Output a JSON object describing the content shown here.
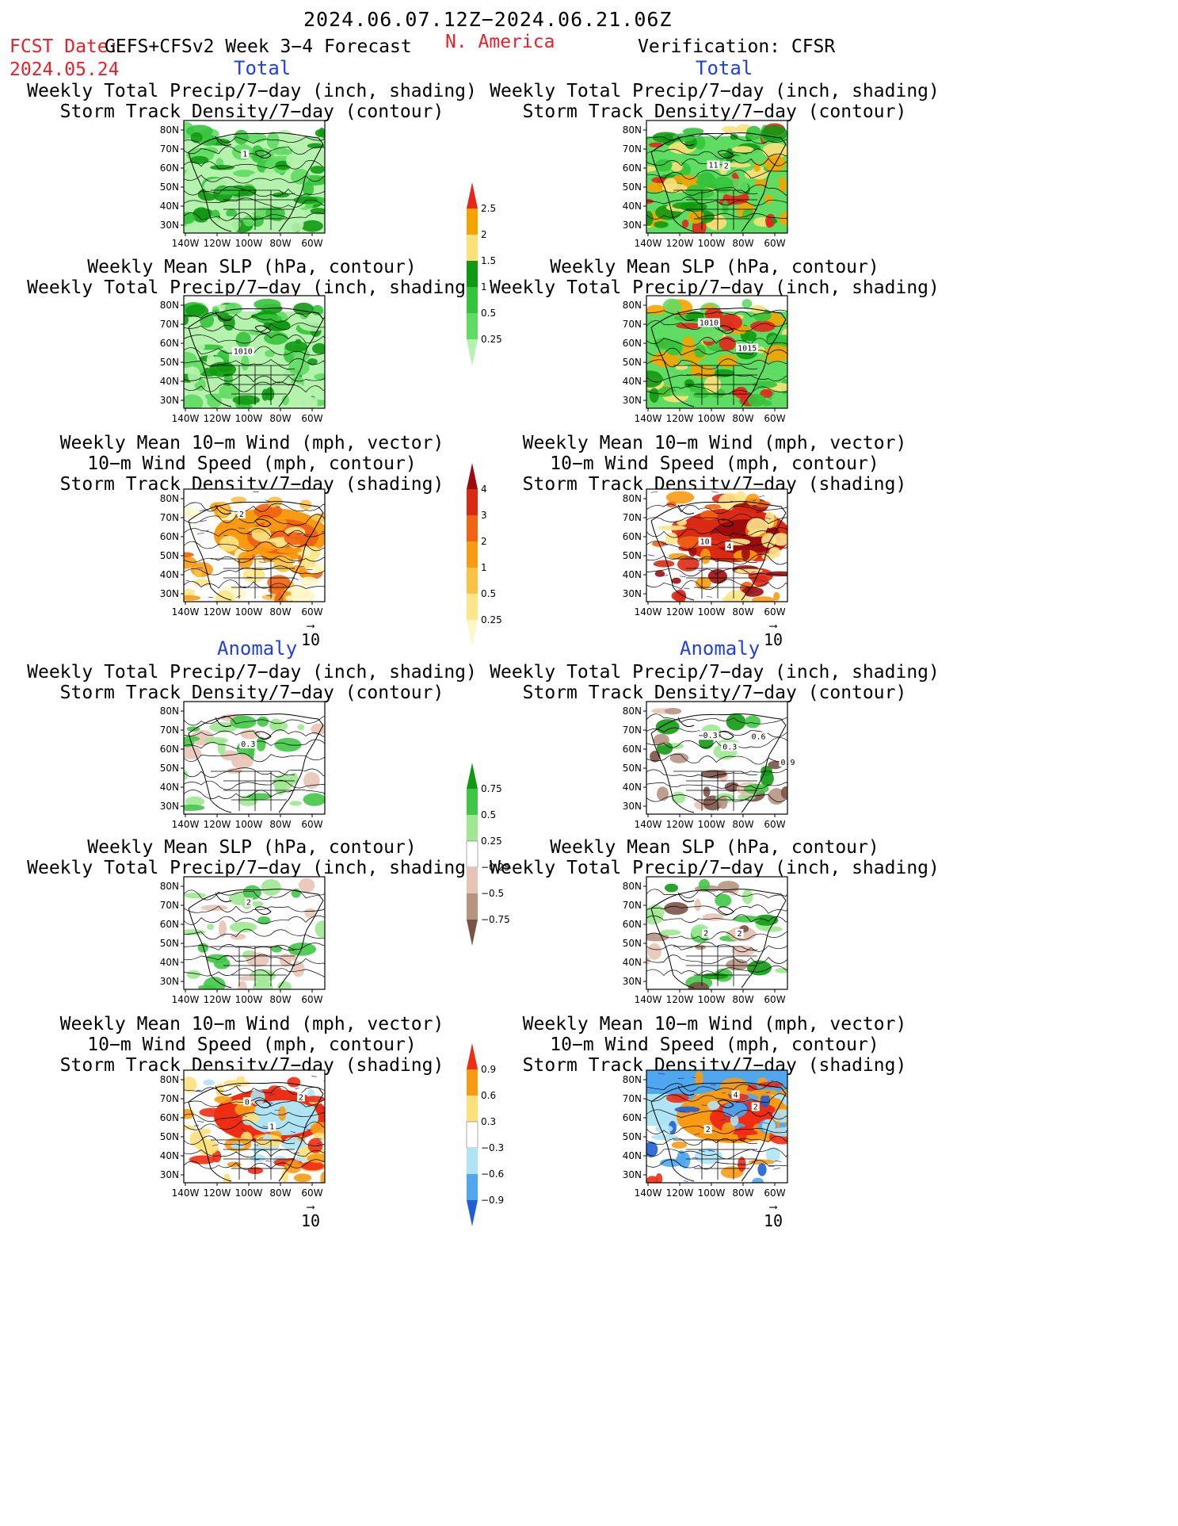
{
  "header": {
    "period": "2024.06.07.12Z−2024.06.21.06Z",
    "fcst_label": "FCST Date:",
    "model": "GEFS+CFSv2 Week 3−4 Forecast",
    "region": "N. America",
    "verification": "Verification: CFSR",
    "fcst_date": "2024.05.24"
  },
  "sections": {
    "total": "Total",
    "anomaly": "Anomaly"
  },
  "panel_titles": {
    "precip_storm": [
      "Weekly Total Precip/7−day (inch, shading)",
      "Storm Track Density/7−day (contour)"
    ],
    "slp_precip": [
      "Weekly Mean SLP (hPa, contour)",
      "Weekly Total Precip/7−day (inch, shading)"
    ],
    "wind_storm": [
      "Weekly Mean 10−m Wind (mph, vector)",
      "10−m Wind Speed (mph, contour)",
      "Storm Track Density/7−day (shading)"
    ]
  },
  "axes": {
    "lat_ticks": [
      "80N",
      "70N",
      "60N",
      "50N",
      "40N",
      "30N"
    ],
    "lon_ticks": [
      "140W",
      "120W",
      "100W",
      "80W",
      "60W"
    ]
  },
  "vector_ref": "10",
  "colorbars": {
    "precip_total": {
      "labels": [
        "2.5",
        "2",
        "1.5",
        "1",
        "0.5",
        "0.25"
      ],
      "colors": [
        "#e8251b",
        "#f6a300",
        "#fde07a",
        "#0f9a12",
        "#34c43b",
        "#5fdc62",
        "#b5f2ad"
      ]
    },
    "storm_total": {
      "labels": [
        "4",
        "3",
        "2",
        "1",
        "0.5",
        "0.25"
      ],
      "colors": [
        "#9b0c0c",
        "#db2a14",
        "#ef6312",
        "#f99b12",
        "#fbc245",
        "#fce68a",
        "#fff6c8"
      ]
    },
    "precip_anom": {
      "labels": [
        "0.75",
        "0.5",
        "0.25",
        "−0.25",
        "−0.5",
        "−0.75"
      ],
      "colors": [
        "#0f9a12",
        "#40c646",
        "#9de891",
        "#ffffff",
        "#e7c4b6",
        "#b79382",
        "#7a5246"
      ]
    },
    "storm_anom": {
      "labels": [
        "0.9",
        "0.6",
        "0.3",
        "−0.3",
        "−0.6",
        "−0.9"
      ],
      "colors": [
        "#ef2d12",
        "#f99b12",
        "#fde07a",
        "#ffffff",
        "#aee4f3",
        "#4fa7ee",
        "#1f5fd6"
      ]
    }
  },
  "map_contour_labels": {
    "r1_left": [
      "1"
    ],
    "r1_right": [
      "11",
      "2"
    ],
    "r2_left": [
      "1010"
    ],
    "r2_right": [
      "1010",
      "1015"
    ],
    "r3_left": [
      "2"
    ],
    "r3_right": [
      "10",
      "4"
    ],
    "r4_left": [
      "0.3"
    ],
    "r4_right": [
      "−0.3",
      "0.3",
      "0.6",
      "0.9"
    ],
    "r5_left": [
      "2"
    ],
    "r5_right": [
      "2",
      "2"
    ],
    "r6_left": [
      "0",
      "1",
      "2"
    ],
    "r6_right": [
      "2",
      "4",
      "2"
    ]
  }
}
